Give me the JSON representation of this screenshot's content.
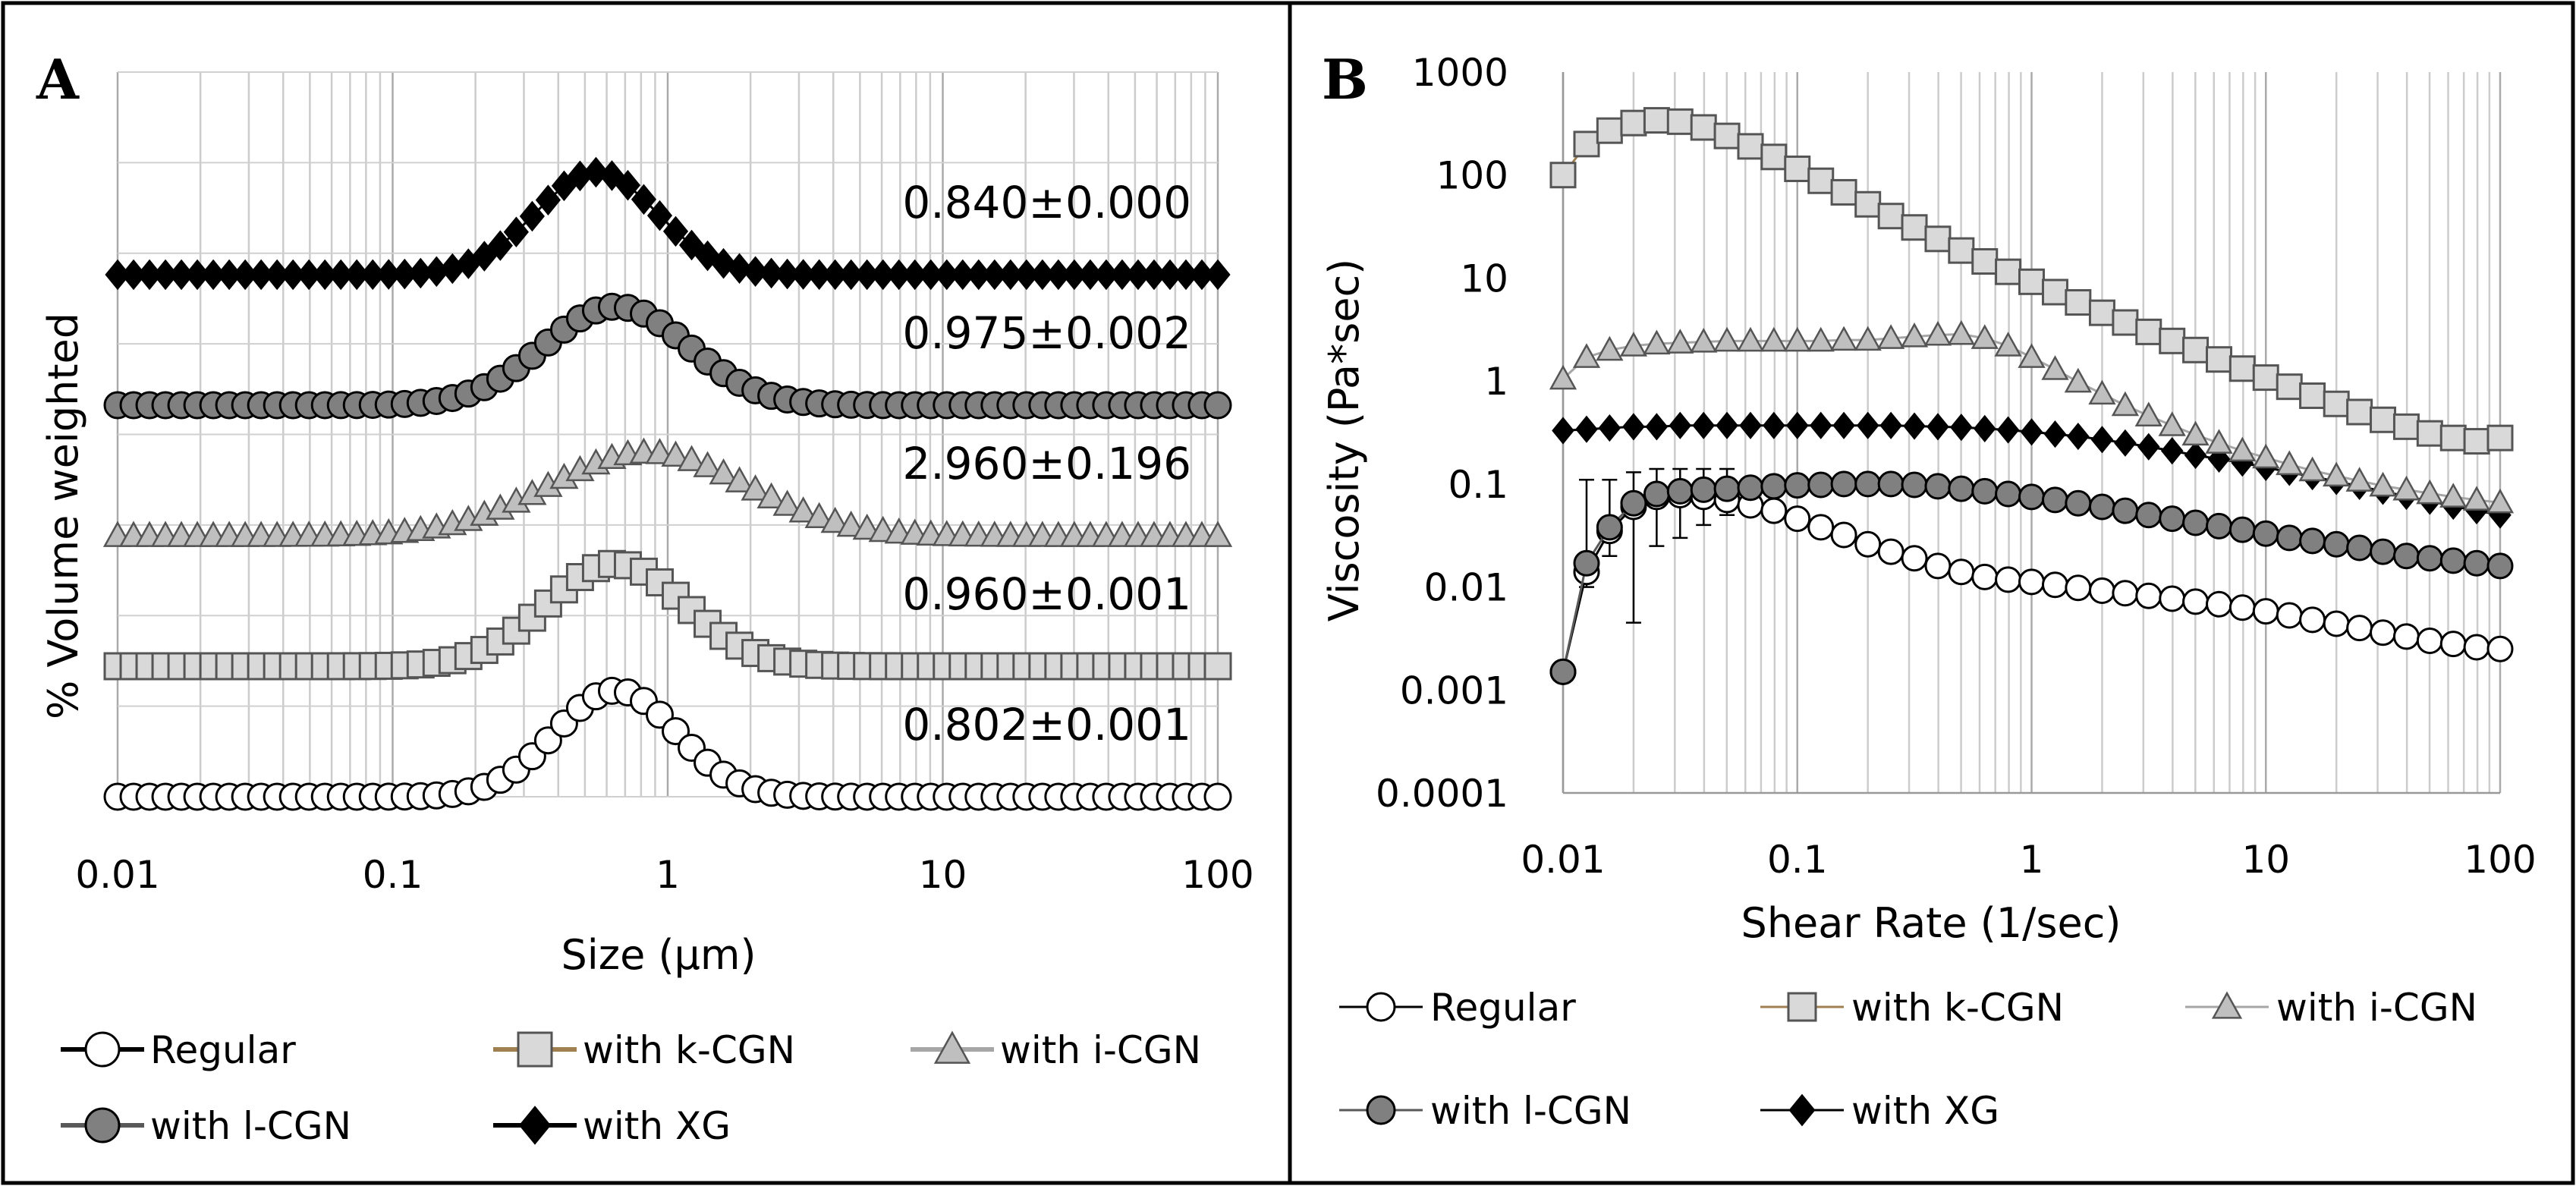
{
  "chart_data": [
    {
      "panel": "A",
      "type": "line",
      "xscale": "log",
      "xlim": [
        0.01,
        100
      ],
      "xticks": [
        {
          "value": 0.01,
          "label": "0.01"
        },
        {
          "value": 0.1,
          "label": "0.1"
        },
        {
          "value": 1,
          "label": "1"
        },
        {
          "value": 10,
          "label": "10"
        },
        {
          "value": 100,
          "label": "100"
        }
      ],
      "xlabel": "Size (μm)",
      "ylabel": "% Volume weighted",
      "grid": true,
      "legend_position": "bottom",
      "series": [
        {
          "name": "Regular",
          "key": "regular",
          "marker": "circle",
          "fill": "#ffffff",
          "line": "#000000",
          "peak_size": 0.65,
          "peak_height": 0.14,
          "width": 0.22,
          "skew": 0.0,
          "span": "0.802±0.001"
        },
        {
          "name": "with k-CGN",
          "key": "kcgn",
          "marker": "square",
          "fill": "#d9d9d9",
          "line": "#a08050",
          "peak_size": 0.65,
          "peak_height": 0.135,
          "width": 0.25,
          "skew": 0.0,
          "span": "0.960±0.001"
        },
        {
          "name": "with i-CGN",
          "key": "icgn",
          "marker": "triangle",
          "fill": "#bfbfbf",
          "line": "#a6a6a6",
          "peak_size": 0.85,
          "peak_height": 0.11,
          "width": 0.36,
          "skew": 0.0,
          "span": "2.960±0.196"
        },
        {
          "name": "with l-CGN",
          "key": "lcgn",
          "marker": "circle",
          "fill": "#808080",
          "line": "#595959",
          "peak_size": 0.65,
          "peak_height": 0.13,
          "width": 0.26,
          "skew": 0.0,
          "span": "0.975±0.002"
        },
        {
          "name": "with XG",
          "key": "xg",
          "marker": "diamond",
          "fill": "#000000",
          "line": "#000000",
          "peak_size": 0.55,
          "peak_height": 0.135,
          "width": 0.22,
          "skew": 0.0,
          "span": "0.840±0.000"
        }
      ],
      "stack_order_bottom_to_top": [
        "regular",
        "kcgn",
        "icgn",
        "lcgn",
        "xg"
      ]
    },
    {
      "panel": "B",
      "type": "scatter-line",
      "xscale": "log",
      "yscale": "log",
      "xlim": [
        0.01,
        100
      ],
      "ylim": [
        0.0001,
        1000
      ],
      "xticks": [
        {
          "value": 0.01,
          "label": "0.01"
        },
        {
          "value": 0.1,
          "label": "0.1"
        },
        {
          "value": 1,
          "label": "1"
        },
        {
          "value": 10,
          "label": "10"
        },
        {
          "value": 100,
          "label": "100"
        }
      ],
      "yticks": [
        {
          "value": 1000,
          "label": "1000"
        },
        {
          "value": 100,
          "label": "100"
        },
        {
          "value": 10,
          "label": "10"
        },
        {
          "value": 1,
          "label": "1"
        },
        {
          "value": 0.1,
          "label": "0.1"
        },
        {
          "value": 0.01,
          "label": "0.01"
        },
        {
          "value": 0.001,
          "label": "0.001"
        },
        {
          "value": 0.0001,
          "label": "0.0001"
        }
      ],
      "xlabel": "Shear Rate (1/sec)",
      "ylabel": "Viscosity (Pa*sec)",
      "grid": "vertical",
      "legend_position": "bottom",
      "shear_rates": [
        0.01,
        0.0126,
        0.0158,
        0.02,
        0.0251,
        0.0316,
        0.0398,
        0.0501,
        0.0631,
        0.0794,
        0.1,
        0.126,
        0.158,
        0.2,
        0.251,
        0.316,
        0.398,
        0.501,
        0.631,
        0.794,
        1,
        1.26,
        1.58,
        2,
        2.51,
        3.16,
        3.98,
        5.01,
        6.31,
        7.94,
        10,
        12.6,
        15.8,
        20,
        25.1,
        31.6,
        39.8,
        50.1,
        63.1,
        79.4,
        100
      ],
      "series": [
        {
          "name": "Regular",
          "key": "regular",
          "marker": "circle",
          "fill": "#ffffff",
          "line": "#000000",
          "values": [
            0.0015,
            0.014,
            0.035,
            0.06,
            0.075,
            0.078,
            0.075,
            0.07,
            0.062,
            0.055,
            0.046,
            0.038,
            0.032,
            0.026,
            0.022,
            0.019,
            0.016,
            0.014,
            0.0125,
            0.0118,
            0.0112,
            0.0105,
            0.0098,
            0.0092,
            0.0087,
            0.0082,
            0.0077,
            0.0072,
            0.0068,
            0.0063,
            0.0058,
            0.0053,
            0.0048,
            0.0044,
            0.004,
            0.0036,
            0.0033,
            0.003,
            0.0028,
            0.0026,
            0.0025
          ]
        },
        {
          "name": "with k-CGN",
          "key": "kcgn",
          "marker": "square",
          "fill": "#d9d9d9",
          "line": "#a08050",
          "values": [
            100,
            200,
            270,
            320,
            340,
            330,
            290,
            240,
            190,
            150,
            115,
            88,
            68,
            52,
            40,
            31,
            24,
            18.5,
            14.5,
            11.5,
            9.2,
            7.3,
            5.8,
            4.6,
            3.7,
            3.0,
            2.45,
            2.0,
            1.62,
            1.32,
            1.08,
            0.88,
            0.72,
            0.6,
            0.5,
            0.42,
            0.36,
            0.31,
            0.28,
            0.26,
            0.28
          ]
        },
        {
          "name": "with i-CGN",
          "key": "icgn",
          "marker": "triangle",
          "fill": "#bfbfbf",
          "line": "#a6a6a6",
          "values": [
            1.05,
            1.7,
            2.0,
            2.2,
            2.3,
            2.35,
            2.4,
            2.45,
            2.45,
            2.45,
            2.45,
            2.45,
            2.5,
            2.5,
            2.6,
            2.7,
            2.8,
            2.85,
            2.6,
            2.2,
            1.7,
            1.3,
            0.98,
            0.75,
            0.58,
            0.46,
            0.37,
            0.3,
            0.25,
            0.21,
            0.18,
            0.155,
            0.135,
            0.12,
            0.107,
            0.096,
            0.088,
            0.081,
            0.075,
            0.07,
            0.066
          ]
        },
        {
          "name": "with l-CGN",
          "key": "lcgn",
          "marker": "circle",
          "fill": "#808080",
          "line": "#595959",
          "values": [
            0.0015,
            0.017,
            0.038,
            0.065,
            0.08,
            0.085,
            0.088,
            0.09,
            0.092,
            0.095,
            0.097,
            0.098,
            0.1,
            0.1,
            0.1,
            0.098,
            0.095,
            0.09,
            0.085,
            0.08,
            0.075,
            0.07,
            0.065,
            0.06,
            0.055,
            0.05,
            0.046,
            0.042,
            0.039,
            0.036,
            0.033,
            0.03,
            0.028,
            0.026,
            0.024,
            0.022,
            0.02,
            0.019,
            0.018,
            0.017,
            0.016
          ]
        },
        {
          "name": "with XG",
          "key": "xg",
          "marker": "diamond",
          "fill": "#000000",
          "line": "#000000",
          "values": [
            0.33,
            0.34,
            0.35,
            0.36,
            0.36,
            0.37,
            0.37,
            0.37,
            0.37,
            0.37,
            0.37,
            0.37,
            0.37,
            0.37,
            0.37,
            0.365,
            0.36,
            0.355,
            0.345,
            0.335,
            0.32,
            0.305,
            0.29,
            0.27,
            0.25,
            0.23,
            0.21,
            0.19,
            0.175,
            0.16,
            0.145,
            0.13,
            0.118,
            0.106,
            0.095,
            0.085,
            0.076,
            0.068,
            0.061,
            0.055,
            0.05
          ]
        }
      ],
      "error_bars": {
        "key": "lcgn",
        "indices": [
          1,
          2,
          3,
          4,
          5,
          6,
          7
        ],
        "low": [
          0.01,
          0.02,
          0.0045,
          0.025,
          0.03,
          0.04,
          0.05
        ],
        "high": [
          0.11,
          0.11,
          0.13,
          0.14,
          0.14,
          0.14,
          0.14
        ]
      }
    }
  ],
  "legend_a": [
    {
      "key": "regular",
      "label": "Regular"
    },
    {
      "key": "kcgn",
      "label": "with k-CGN"
    },
    {
      "key": "icgn",
      "label": "with i-CGN"
    },
    {
      "key": "lcgn",
      "label": "with l-CGN"
    },
    {
      "key": "xg",
      "label": "with XG"
    }
  ],
  "legend_b": [
    {
      "key": "regular",
      "label": "Regular"
    },
    {
      "key": "kcgn",
      "label": "with k-CGN"
    },
    {
      "key": "icgn",
      "label": "with i-CGN"
    },
    {
      "key": "lcgn",
      "label": "with l-CGN"
    },
    {
      "key": "xg",
      "label": "with XG"
    }
  ],
  "panel_a": {
    "letter": "A"
  },
  "panel_b": {
    "letter": "B"
  }
}
